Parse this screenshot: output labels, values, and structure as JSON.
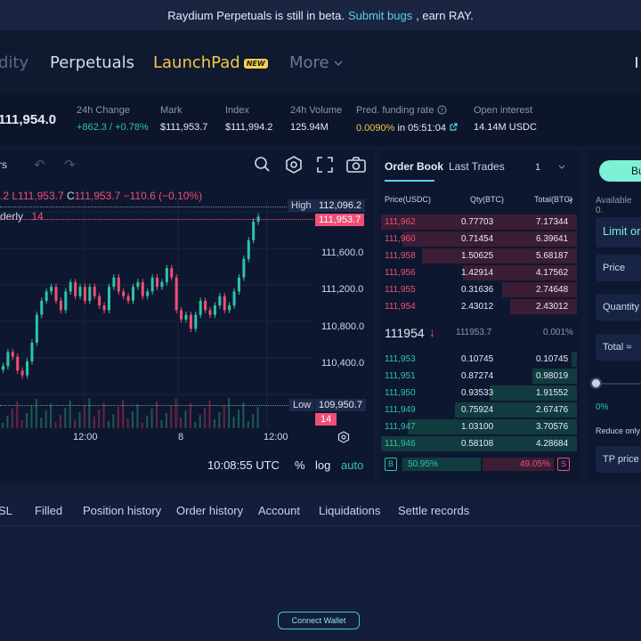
{
  "banner": {
    "text": "Raydium Perpetuals is still in beta.",
    "link": "Submit bugs",
    "suffix": ", earn RAY."
  },
  "nav": {
    "liquidity_partial": "dity",
    "perpetuals": "Perpetuals",
    "launchpad": "LaunchPad",
    "launchpad_badge": "NEW",
    "more": "More"
  },
  "ticker": {
    "price": "111,954.0",
    "change_label": "24h Change",
    "change_value": "+862.3 / +0.78%",
    "mark_label": "Mark",
    "mark_value": "$111,953.7",
    "index_label": "Index",
    "index_value": "$111,994.2",
    "volume_label": "24h Volume",
    "volume_value": "125.94M",
    "funding_label": "Pred. funding rate",
    "funding_rate": "0.0090%",
    "funding_time": "in 05:51:04",
    "oi_label": "Open interest",
    "oi_value": "14.14M USDC"
  },
  "chart": {
    "toolbar_partial": "rs",
    "ohlc_l": ".2",
    "ohlc_c_label": "C",
    "ohlc_l_value": "L111,953.7",
    "ohlc_c_value": "111,953.7",
    "ohlc_change": "−110.6 (−0.10%)",
    "indicator_name": "derly",
    "indicator_value": "14",
    "high_label": "High",
    "high_value": "112,096.2",
    "last_price": "111,953.7",
    "low_label": "Low",
    "low_value": "109,950.7",
    "low_badge": "14",
    "y_ticks": [
      "111,600.0",
      "111,200.0",
      "110,800.0",
      "110,400.0"
    ],
    "x_ticks": [
      "12:00",
      "8",
      "12:00"
    ],
    "clock": "10:08:55 UTC",
    "pct_label": "%",
    "log_label": "log",
    "auto_label": "auto"
  },
  "chart_data": {
    "type": "candlestick",
    "title": "",
    "ylim": [
      109950,
      112100
    ],
    "close_series": [
      110350,
      110500,
      110450,
      110300,
      110250,
      110400,
      110600,
      110900,
      111050,
      111150,
      111200,
      111050,
      110950,
      111150,
      111250,
      111100,
      111200,
      111050,
      111200,
      111100,
      111000,
      110950,
      111200,
      111300,
      111150,
      111100,
      111050,
      111200,
      111250,
      111100,
      111150,
      111300,
      111200,
      111250,
      111400,
      111300,
      110950,
      110850,
      110900,
      110750,
      110900,
      111050,
      110950,
      110900,
      111000,
      111100,
      110950,
      111000,
      111150,
      111300,
      111500,
      111700,
      111900,
      111954
    ]
  },
  "orderbook": {
    "tab_orderbook": "Order Book",
    "tab_trades": "Last Trades",
    "grouping": "1",
    "col_price": "Price(USDC)",
    "col_qty": "Qty(BTC)",
    "col_total": "Total(BTC)",
    "asks": [
      {
        "price": "111,962",
        "qty": "0.77703",
        "total": "7.17344"
      },
      {
        "price": "111,960",
        "qty": "0.71454",
        "total": "6.39641"
      },
      {
        "price": "111,958",
        "qty": "1.50625",
        "total": "5.68187"
      },
      {
        "price": "111,956",
        "qty": "1.42914",
        "total": "4.17562"
      },
      {
        "price": "111,955",
        "qty": "0.31636",
        "total": "2.74648"
      },
      {
        "price": "111,954",
        "qty": "2.43012",
        "total": "2.43012"
      }
    ],
    "mid_price": "111954",
    "mid_arrow": "↓",
    "mid_mark": "111953.7",
    "mid_spread": "0.001%",
    "bids": [
      {
        "price": "111,953",
        "qty": "0.10745",
        "total": "0.10745"
      },
      {
        "price": "111,951",
        "qty": "0.87274",
        "total": "0.98019"
      },
      {
        "price": "111,950",
        "qty": "0.93533",
        "total": "1.91552"
      },
      {
        "price": "111,949",
        "qty": "0.75924",
        "total": "2.67476"
      },
      {
        "price": "111,947",
        "qty": "1.03100",
        "total": "3.70576"
      },
      {
        "price": "111,946",
        "qty": "0.58108",
        "total": "4.28684"
      }
    ],
    "buy_badge": "B",
    "buy_pct": "50.95%",
    "sell_pct": "49.05%",
    "sell_badge": "S"
  },
  "order_panel": {
    "buy_partial": "Bu",
    "available": "Available 0.",
    "limit_partial": "Limit or",
    "price": "Price",
    "quantity": "Quantity",
    "total": "Total ≈",
    "slider_pct": "0%",
    "reduce_only": "Reduce only",
    "tp_price": "TP price"
  },
  "bottom": {
    "tabs": [
      "SL",
      "Filled",
      "Position history",
      "Order history",
      "Account",
      "Liquidations",
      "Settle records"
    ],
    "connect": "Connect Wallet"
  },
  "colors": {
    "bg": "#101a32",
    "up": "#2ec4a6",
    "down": "#ef4f75",
    "accent": "#5ad0f0",
    "badge": "#f5d24b"
  }
}
